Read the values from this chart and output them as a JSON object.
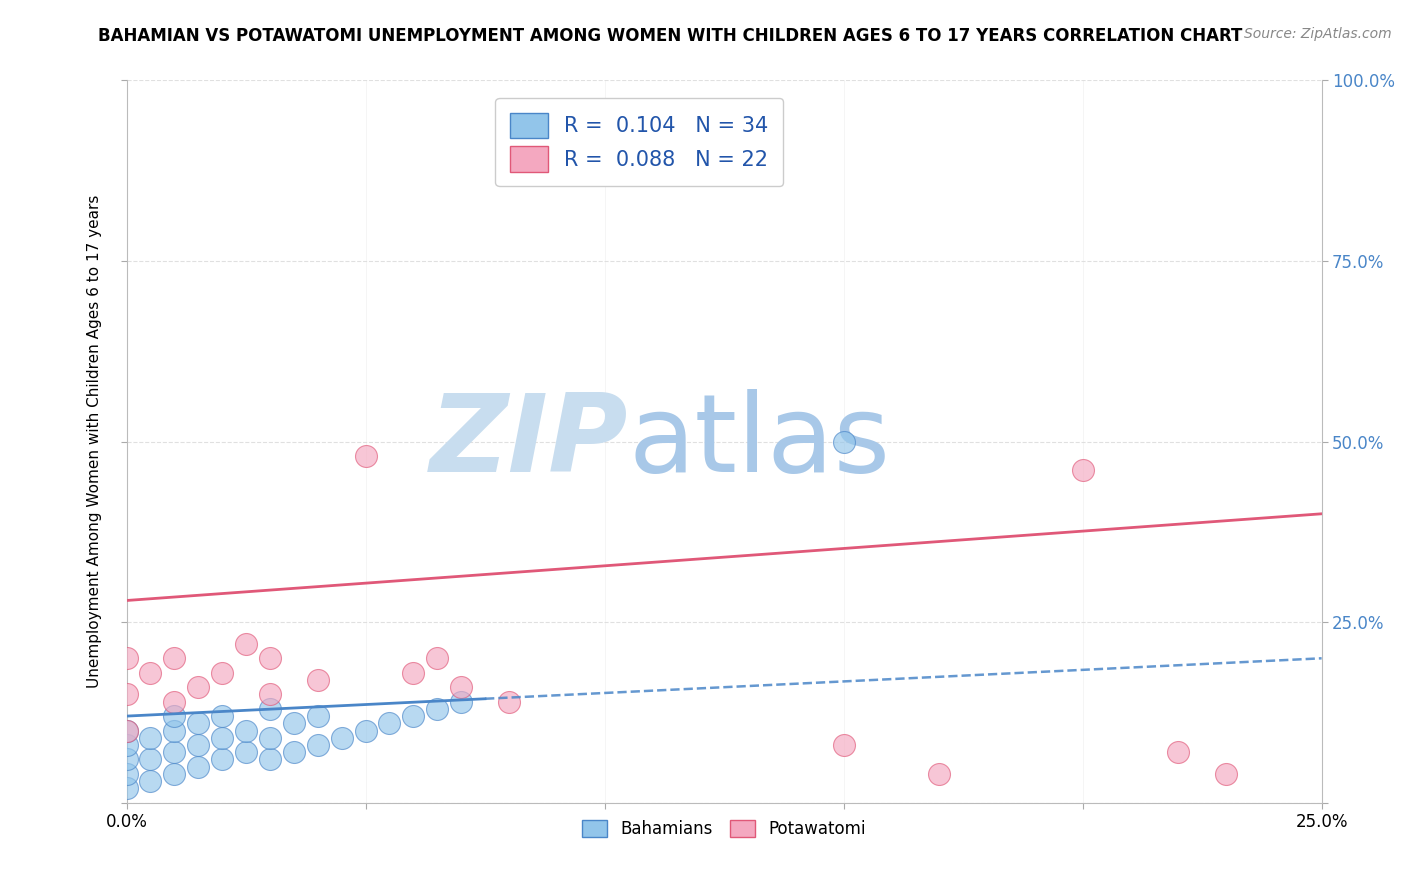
{
  "title": "BAHAMIAN VS POTAWATOMI UNEMPLOYMENT AMONG WOMEN WITH CHILDREN AGES 6 TO 17 YEARS CORRELATION CHART",
  "source": "Source: ZipAtlas.com",
  "ylabel": "Unemployment Among Women with Children Ages 6 to 17 years",
  "xlim": [
    0.0,
    0.25
  ],
  "ylim": [
    0.0,
    1.0
  ],
  "xtick_positions": [
    0.0,
    0.05,
    0.1,
    0.15,
    0.2,
    0.25
  ],
  "ytick_positions": [
    0.0,
    0.25,
    0.5,
    0.75,
    1.0
  ],
  "xticklabels": [
    "0.0%",
    "",
    "",
    "",
    "",
    "25.0%"
  ],
  "yticklabels_right": [
    "",
    "25.0%",
    "50.0%",
    "75.0%",
    "100.0%"
  ],
  "bahamians_x": [
    0.0,
    0.0,
    0.0,
    0.0,
    0.0,
    0.005,
    0.005,
    0.005,
    0.01,
    0.01,
    0.01,
    0.01,
    0.015,
    0.015,
    0.015,
    0.02,
    0.02,
    0.02,
    0.025,
    0.025,
    0.03,
    0.03,
    0.03,
    0.035,
    0.035,
    0.04,
    0.04,
    0.045,
    0.05,
    0.055,
    0.06,
    0.065,
    0.07,
    0.15
  ],
  "bahamians_y": [
    0.02,
    0.04,
    0.06,
    0.08,
    0.1,
    0.03,
    0.06,
    0.09,
    0.04,
    0.07,
    0.1,
    0.12,
    0.05,
    0.08,
    0.11,
    0.06,
    0.09,
    0.12,
    0.07,
    0.1,
    0.06,
    0.09,
    0.13,
    0.07,
    0.11,
    0.08,
    0.12,
    0.09,
    0.1,
    0.11,
    0.12,
    0.13,
    0.14,
    0.5
  ],
  "potawatomi_x": [
    0.0,
    0.0,
    0.0,
    0.005,
    0.01,
    0.01,
    0.015,
    0.02,
    0.025,
    0.03,
    0.03,
    0.04,
    0.05,
    0.06,
    0.065,
    0.07,
    0.08,
    0.15,
    0.17,
    0.2,
    0.22,
    0.23
  ],
  "potawatomi_y": [
    0.1,
    0.15,
    0.2,
    0.18,
    0.14,
    0.2,
    0.16,
    0.18,
    0.22,
    0.15,
    0.2,
    0.17,
    0.48,
    0.18,
    0.2,
    0.16,
    0.14,
    0.08,
    0.04,
    0.46,
    0.07,
    0.04
  ],
  "R_bahamians": 0.104,
  "N_bahamians": 34,
  "R_potawatomi": 0.088,
  "N_potawatomi": 22,
  "color_bahamians": "#92C5EA",
  "color_potawatomi": "#F4A8C0",
  "trendline_bahamians_color": "#4A86C8",
  "trendline_potawatomi_color": "#E05878",
  "trendline_bahamians_x0": 0.0,
  "trendline_bahamians_y0": 0.12,
  "trendline_bahamians_x1": 0.25,
  "trendline_bahamians_y1": 0.2,
  "trendline_potawatomi_x0": 0.0,
  "trendline_potawatomi_y0": 0.28,
  "trendline_potawatomi_x1": 0.25,
  "trendline_potawatomi_y1": 0.4,
  "watermark_zip": "ZIP",
  "watermark_atlas": "atlas",
  "watermark_color_zip": "#C8DDEF",
  "watermark_color_atlas": "#A8C8E8",
  "background_color": "#FFFFFF",
  "grid_color": "#DDDDDD",
  "title_fontsize": 12,
  "label_fontsize": 11,
  "legend_fontsize": 15,
  "source_fontsize": 10
}
